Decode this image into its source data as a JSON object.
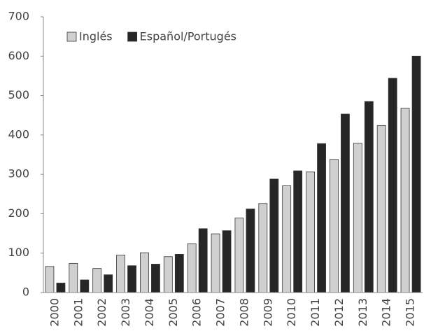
{
  "chart_data": {
    "type": "bar",
    "categories": [
      "2000",
      "2001",
      "2002",
      "2003",
      "2004",
      "2005",
      "2006",
      "2007",
      "2008",
      "2009",
      "2010",
      "2011",
      "2012",
      "2013",
      "2014",
      "2015"
    ],
    "series": [
      {
        "name": "Inglés",
        "color": "#d0d0d0",
        "values": [
          66,
          74,
          61,
          95,
          101,
          91,
          124,
          149,
          189,
          226,
          271,
          306,
          338,
          379,
          424,
          468
        ]
      },
      {
        "name": "Español/Portugés",
        "color": "#262626",
        "values": [
          24,
          32,
          45,
          68,
          72,
          97,
          162,
          157,
          212,
          288,
          309,
          378,
          453,
          485,
          544,
          600
        ]
      }
    ],
    "ylim": [
      0,
      700
    ],
    "yticks": [
      0,
      100,
      200,
      300,
      400,
      500,
      600,
      700
    ],
    "grid": false,
    "legend": "top-left"
  }
}
